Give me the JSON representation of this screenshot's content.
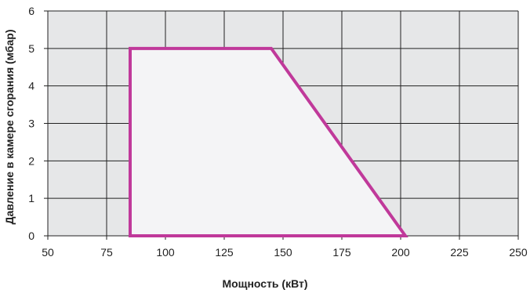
{
  "chart_data": {
    "type": "area",
    "title": "",
    "xlabel": "Мощность (кВт)",
    "ylabel": "Давление в камере сгорания (мбар)",
    "xlim": [
      50,
      250
    ],
    "ylim": [
      0,
      6
    ],
    "x_ticks": [
      50,
      75,
      100,
      125,
      150,
      175,
      200,
      225,
      250
    ],
    "y_ticks": [
      0,
      1,
      2,
      3,
      4,
      5,
      6
    ],
    "grid": true,
    "legend": "none",
    "series": [
      {
        "points": [
          {
            "x": 85,
            "y": 0
          },
          {
            "x": 85,
            "y": 5
          },
          {
            "x": 145,
            "y": 5
          },
          {
            "x": 202,
            "y": 0
          }
        ],
        "closed": true
      }
    ]
  },
  "colors": {
    "plot_background": "#e6e7e8",
    "region_fill": "#f4f4f6",
    "region_outline": "#c0399a",
    "grid": "#222222"
  }
}
